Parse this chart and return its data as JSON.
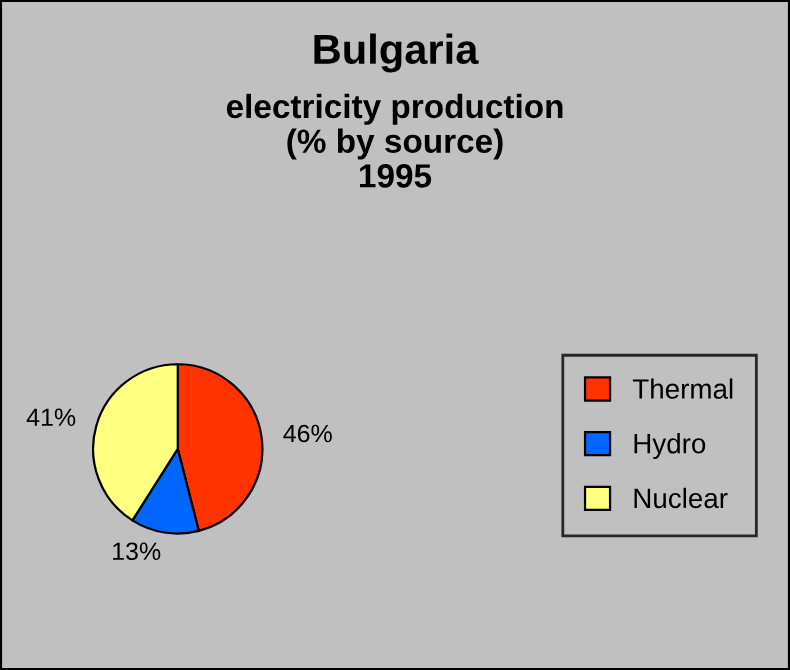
{
  "chart_data": {
    "type": "pie",
    "title": "Bulgaria",
    "subtitle": "electricity production\n(% by source)\n1995",
    "categories": [
      "Thermal",
      "Hydro",
      "Nuclear"
    ],
    "values": [
      46,
      13,
      41
    ],
    "colors": [
      "#ff3300",
      "#0066ff",
      "#ffff80"
    ],
    "value_labels": [
      "46%",
      "13%",
      "41%"
    ],
    "legend": "right"
  }
}
